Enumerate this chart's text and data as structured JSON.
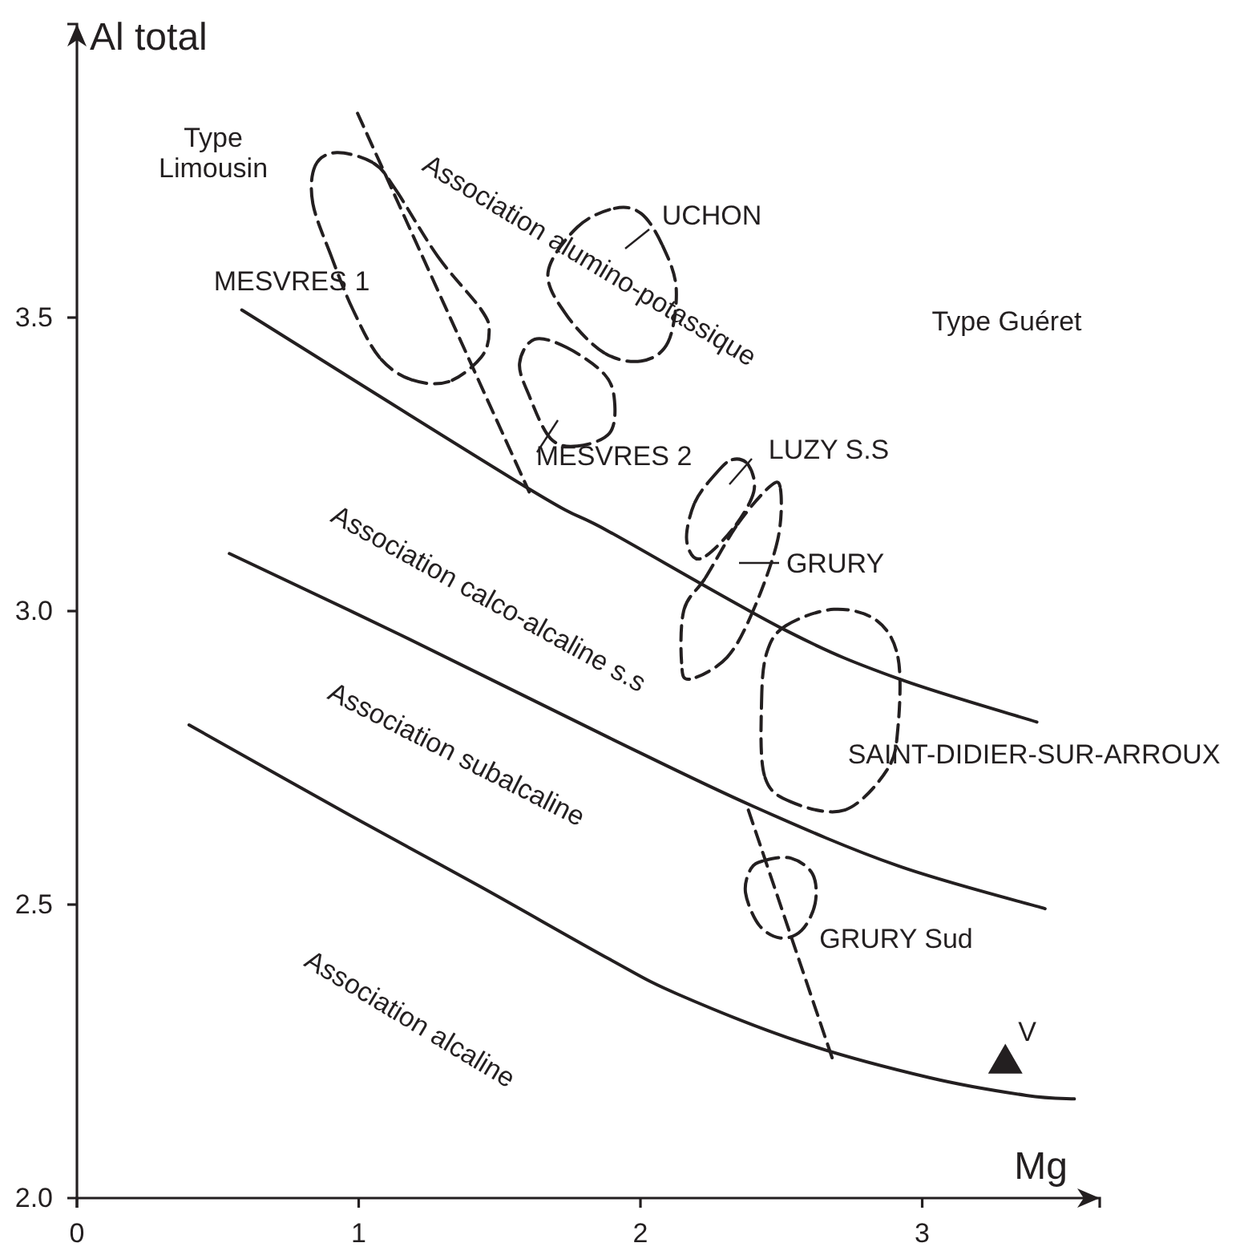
{
  "chart_data": {
    "type": "line",
    "xlabel": "Mg",
    "ylabel": "Al total",
    "xlim": [
      0,
      3.63
    ],
    "ylim": [
      2,
      4
    ],
    "xticks": [
      0,
      1,
      2,
      3
    ],
    "yticks": [
      {
        "value": 2,
        "label": "2.0"
      },
      {
        "value": 2.5,
        "label": "2.5"
      },
      {
        "value": 3,
        "label": "3.0"
      },
      {
        "value": 3.5,
        "label": "3.5"
      }
    ],
    "grid": false,
    "legend": false,
    "line_style": "dashed",
    "annotations": [
      "Type\nLimousin",
      "Association alumino-potassique",
      "Type Guéret",
      "Association calco-alcaline s.s",
      "Association subalcaline",
      "Association alcaline",
      "MESVRES 1",
      "UCHON",
      "MESVRES 2",
      "LUZY S.S",
      "GRURY",
      "SAINT-DIDIER-SUR-ARROUX",
      "GRURY Sud"
    ],
    "series": [
      {
        "color": "#231f20",
        "line_style": "solid",
        "x": [
          0.585,
          1.605,
          1.89,
          2.516,
          2.914,
          3.407
        ],
        "values": [
          3.513,
          3.208,
          3.135,
          2.967,
          2.885,
          2.811
        ]
      },
      {
        "color": "#231f20",
        "line_style": "solid",
        "x": [
          0.541,
          1.15,
          1.89,
          2.402,
          2.914,
          3.436
        ],
        "values": [
          3.098,
          2.959,
          2.784,
          2.667,
          2.566,
          2.493
        ]
      },
      {
        "color": "#231f20",
        "line_style": "solid",
        "x": [
          0.398,
          1.007,
          1.434,
          1.89,
          2.134,
          2.573,
          3.028,
          3.369,
          3.54
        ],
        "values": [
          2.806,
          2.642,
          2.53,
          2.407,
          2.347,
          2.265,
          2.205,
          2.175,
          2.169
        ]
      },
      {
        "color": "#231f20",
        "x": [
          0.996,
          1.605
        ],
        "values": [
          3.848,
          3.203
        ]
      },
      {
        "color": "#231f20",
        "x": [
          2.383,
          2.681
        ],
        "values": [
          2.661,
          2.238
        ]
      },
      {
        "color": "#231f20",
        "x": [
          0.846,
          0.922,
          1.053,
          1.131,
          1.281,
          1.434,
          1.463,
          1.434,
          1.32,
          1.188,
          1.074,
          0.979,
          0.903,
          0.837,
          0.846
        ],
        "values": [
          3.759,
          3.781,
          3.763,
          3.718,
          3.604,
          3.514,
          3.476,
          3.432,
          3.391,
          3.394,
          3.432,
          3.514,
          3.604,
          3.695,
          3.759
        ]
      },
      {
        "color": "#231f20",
        "x": [
          1.776,
          1.908,
          2.003,
          2.079,
          2.127,
          2.098,
          2.003,
          1.871,
          1.738,
          1.672,
          1.776
        ],
        "values": [
          3.654,
          3.686,
          3.677,
          3.622,
          3.549,
          3.458,
          3.426,
          3.44,
          3.504,
          3.577,
          3.654
        ]
      },
      {
        "color": "#231f20",
        "x": [
          1.624,
          1.738,
          1.871,
          1.908,
          1.89,
          1.776,
          1.681,
          1.605,
          1.571,
          1.624
        ],
        "values": [
          3.463,
          3.449,
          3.404,
          3.358,
          3.303,
          3.281,
          3.294,
          3.367,
          3.422,
          3.463
        ]
      },
      {
        "color": "#231f20",
        "x": [
          2.326,
          2.383,
          2.402,
          2.326,
          2.212,
          2.164,
          2.193,
          2.269,
          2.326
        ],
        "values": [
          3.258,
          3.249,
          3.203,
          3.139,
          3.089,
          3.121,
          3.185,
          3.235,
          3.258
        ]
      },
      {
        "color": "#231f20",
        "x": [
          2.459,
          2.497,
          2.487,
          2.402,
          2.307,
          2.174,
          2.146,
          2.155,
          2.231,
          2.345,
          2.459
        ],
        "values": [
          3.212,
          3.208,
          3.121,
          3.003,
          2.921,
          2.884,
          2.912,
          3.003,
          3.057,
          3.148,
          3.212
        ]
      },
      {
        "color": "#231f20",
        "x": [
          2.516,
          2.686,
          2.838,
          2.914,
          2.914,
          2.876,
          2.725,
          2.534,
          2.44,
          2.43,
          2.449,
          2.516
        ],
        "values": [
          2.975,
          3.003,
          2.984,
          2.921,
          2.802,
          2.73,
          2.661,
          2.675,
          2.72,
          2.848,
          2.93,
          2.975
        ]
      },
      {
        "color": "#231f20",
        "x": [
          2.44,
          2.534,
          2.611,
          2.62,
          2.572,
          2.497,
          2.421,
          2.373,
          2.392,
          2.44
        ],
        "values": [
          2.575,
          2.579,
          2.552,
          2.502,
          2.456,
          2.443,
          2.465,
          2.52,
          2.561,
          2.575
        ]
      },
      {
        "name": "V",
        "type": "scatter",
        "color": "#231f20",
        "marker": "triangle",
        "x": [
          3.295
        ],
        "values": [
          2.229
        ]
      }
    ]
  }
}
